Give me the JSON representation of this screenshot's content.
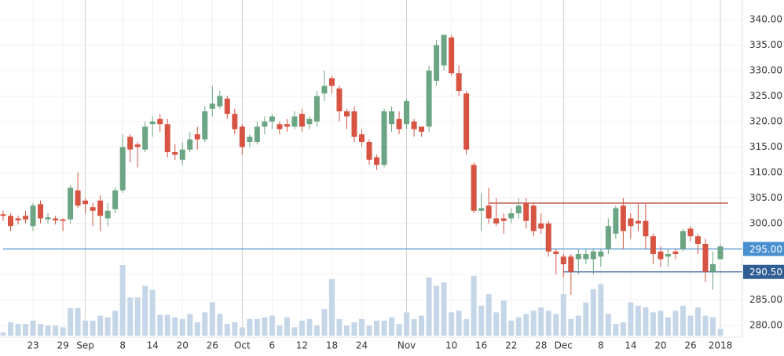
{
  "chart_data": {
    "type": "candlestick",
    "categories": [
      null,
      null,
      null,
      null,
      "23",
      null,
      null,
      null,
      "29",
      null,
      null,
      "Sep",
      null,
      null,
      null,
      null,
      "8",
      null,
      null,
      null,
      "14",
      null,
      null,
      null,
      "20",
      null,
      null,
      null,
      "26",
      null,
      null,
      null,
      "Oct",
      null,
      null,
      null,
      "6",
      null,
      null,
      null,
      "12",
      null,
      null,
      null,
      "18",
      null,
      null,
      null,
      "24",
      null,
      null,
      null,
      null,
      null,
      "Nov",
      null,
      null,
      null,
      null,
      null,
      "10",
      null,
      null,
      null,
      "16",
      null,
      null,
      null,
      "22",
      null,
      null,
      null,
      "28",
      null,
      null,
      "Dec",
      null,
      null,
      null,
      null,
      "8",
      null,
      null,
      null,
      "14",
      null,
      null,
      null,
      "20",
      null,
      null,
      null,
      "26",
      null,
      null,
      null,
      "2018"
    ],
    "open": [
      301.8,
      301.5,
      301,
      301.5,
      299.5,
      303.8,
      300.8,
      301,
      300.8,
      300.8,
      306.5,
      304.5,
      303.2,
      304.5,
      301,
      302.8,
      306.5,
      317,
      315.5,
      314.5,
      319.5,
      320.5,
      319.5,
      314,
      312.5,
      314.5,
      317.5,
      316.5,
      322.5,
      323,
      324.5,
      321.5,
      319,
      316,
      316,
      319,
      320,
      319.5,
      319.5,
      319,
      321.5,
      319.5,
      320,
      325.5,
      328.5,
      326.5,
      322,
      322,
      317.5,
      316,
      313,
      311.5,
      319.5,
      320.5,
      319.5,
      320,
      319,
      319,
      328,
      331,
      336.5,
      329.5,
      325.5,
      311.5,
      302.5,
      303.5,
      301,
      301,
      301,
      302,
      304,
      303.5,
      300,
      300,
      294.5,
      293.5,
      293.5,
      293,
      293,
      293,
      293.5,
      295,
      298,
      303.5,
      301,
      300.5,
      300.5,
      297.5,
      294.5,
      293.5,
      294.5,
      295,
      299,
      297.5,
      296,
      290.5,
      293
    ],
    "high": [
      302.5,
      302,
      301.5,
      302.5,
      304,
      304.5,
      302,
      301.5,
      301,
      307.5,
      310,
      305,
      304,
      305.5,
      304,
      307,
      317.5,
      317.5,
      316,
      320,
      321,
      321.5,
      320.5,
      315.5,
      316,
      318,
      319,
      323,
      327,
      326,
      325,
      322.5,
      319.5,
      317.5,
      320,
      321,
      321.5,
      320,
      320.5,
      322,
      322.5,
      321,
      326,
      330,
      329,
      327,
      322.5,
      323,
      318.5,
      316.5,
      313.5,
      322.5,
      323,
      322,
      324.5,
      320.5,
      319,
      331,
      336,
      337,
      337,
      331,
      326,
      312,
      306,
      307,
      305,
      302,
      303,
      305,
      305,
      304,
      302,
      300.5,
      295,
      294,
      294,
      295,
      295,
      295,
      295,
      301,
      303.5,
      305,
      302,
      304,
      304,
      298,
      295.5,
      295,
      295,
      299,
      299.5,
      298,
      297,
      294.5,
      296
    ],
    "low": [
      300.5,
      298.5,
      299.8,
      300,
      298.5,
      300,
      300,
      299.8,
      298.5,
      300,
      303,
      302,
      299.5,
      298.5,
      299.5,
      302,
      306,
      312,
      311,
      314,
      317,
      318,
      313,
      312.5,
      311.5,
      314,
      314.5,
      316,
      321,
      322.5,
      320.5,
      317.5,
      313.5,
      315,
      315.5,
      317.5,
      318.5,
      317.5,
      318,
      318.5,
      318,
      318.5,
      319,
      324,
      325.5,
      320,
      318.5,
      316,
      315,
      311.5,
      310.5,
      311,
      318,
      317.5,
      318.5,
      317,
      317,
      318,
      327,
      330,
      329,
      325,
      313.5,
      302,
      298.5,
      300,
      299.5,
      298,
      300,
      301,
      299,
      297.5,
      298,
      293.5,
      290,
      289.5,
      286,
      290,
      292,
      290,
      291.5,
      294,
      297,
      295,
      297,
      298.5,
      295,
      292,
      291.5,
      291.5,
      293,
      294.5,
      296.5,
      294,
      288.5,
      287,
      293
    ],
    "close": [
      301.5,
      299.5,
      300.6,
      300.8,
      303.5,
      301,
      301.2,
      300.6,
      300.5,
      307,
      303.5,
      303.8,
      302.5,
      301.5,
      302.5,
      306.5,
      315,
      314.5,
      315,
      319,
      320,
      319.5,
      314,
      313.5,
      314.5,
      316.5,
      316.5,
      322,
      323.5,
      325,
      321.5,
      318.5,
      315,
      317,
      319,
      320,
      321,
      318.5,
      319,
      321,
      319,
      320.5,
      325,
      327,
      327,
      322,
      321,
      317,
      316,
      312.5,
      311.5,
      322,
      322,
      318.5,
      324,
      318.5,
      318,
      330,
      335,
      337,
      329.5,
      326,
      314.5,
      302.5,
      303,
      301,
      300,
      300.5,
      302,
      303.5,
      300.5,
      298.5,
      299,
      294.5,
      294,
      292,
      290.5,
      294,
      294,
      294.5,
      294.5,
      299.5,
      303,
      298.5,
      299.5,
      300,
      297.5,
      294,
      293,
      294,
      294,
      298.5,
      297.5,
      296,
      290.5,
      292,
      295.5
    ],
    "volume": [
      4,
      16,
      14,
      14,
      18,
      14,
      12,
      12,
      10,
      33,
      33,
      18,
      18,
      24,
      22,
      30,
      85,
      46,
      46,
      60,
      55,
      25,
      25,
      22,
      20,
      26,
      16,
      28,
      40,
      26,
      14,
      16,
      10,
      20,
      20,
      22,
      24,
      12,
      22,
      10,
      18,
      20,
      12,
      32,
      68,
      20,
      12,
      16,
      20,
      12,
      18,
      18,
      22,
      14,
      28,
      20,
      24,
      70,
      60,
      64,
      28,
      30,
      20,
      72,
      36,
      50,
      28,
      42,
      18,
      22,
      26,
      30,
      34,
      30,
      26,
      50,
      20,
      24,
      40,
      56,
      62,
      26,
      14,
      16,
      40,
      36,
      34,
      28,
      30,
      22,
      30,
      36,
      24,
      34,
      24,
      22,
      8
    ],
    "up_color": "#6ba583",
    "down_color": "#d75442",
    "volume_color": "#c5d6e8",
    "ylim": [
      276.15,
      343.85
    ],
    "yticks": [
      {
        "value": 280,
        "label": "280.00"
      },
      {
        "value": 285,
        "label": "285.00"
      },
      {
        "value": 290,
        "label": "290.00"
      },
      {
        "value": 295,
        "label": "295.00"
      },
      {
        "value": 300,
        "label": "300.00"
      },
      {
        "value": 305,
        "label": "305.00"
      },
      {
        "value": 310,
        "label": "310.00"
      },
      {
        "value": 315,
        "label": "315.00"
      },
      {
        "value": 320,
        "label": "320.00"
      },
      {
        "value": 325,
        "label": "325.00"
      },
      {
        "value": 330,
        "label": "330.00"
      },
      {
        "value": 335,
        "label": "335.00"
      },
      {
        "value": 340,
        "label": "340.00"
      }
    ],
    "grid": true,
    "hlines": [
      {
        "value": 304,
        "color": "#b5403a",
        "from": 65
      },
      {
        "value": 295,
        "label": "295.00",
        "color": "#4a90d0",
        "from": 0
      },
      {
        "value": 290.5,
        "label": "290.50",
        "color": "#2f5d94",
        "from": 75
      }
    ]
  }
}
